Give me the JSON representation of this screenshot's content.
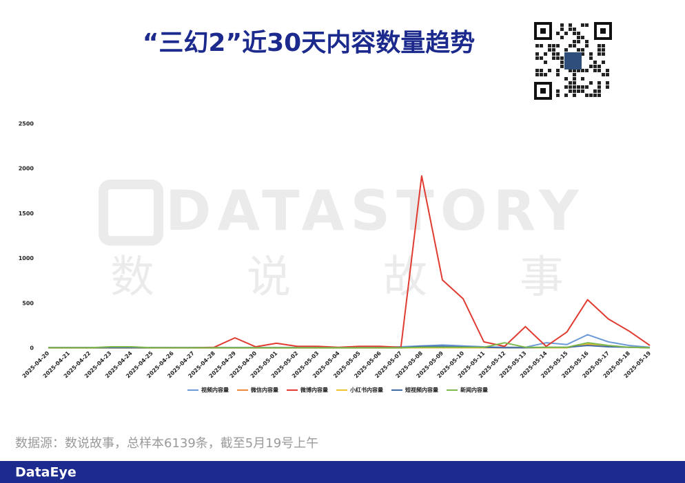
{
  "chart_data": {
    "type": "line",
    "title": "“三幻2”近30天内容数量趋势",
    "categories": [
      "2025-04-20",
      "2025-04-21",
      "2025-04-22",
      "2025-04-23",
      "2025-04-24",
      "2025-04-25",
      "2025-04-26",
      "2025-04-27",
      "2025-04-28",
      "2025-04-29",
      "2025-04-30",
      "2025-05-01",
      "2025-05-02",
      "2025-05-03",
      "2025-05-04",
      "2025-05-05",
      "2025-05-06",
      "2025-05-07",
      "2025-05-08",
      "2025-05-09",
      "2025-05-10",
      "2025-05-11",
      "2025-05-12",
      "2025-05-13",
      "2025-05-14",
      "2025-05-15",
      "2025-05-16",
      "2025-05-17",
      "2025-05-18",
      "2025-05-19"
    ],
    "series": [
      {
        "name": "视频内容量",
        "color": "#6c9ad6",
        "values": [
          8,
          8,
          8,
          8,
          8,
          8,
          8,
          8,
          8,
          8,
          8,
          8,
          8,
          8,
          8,
          10,
          10,
          15,
          25,
          35,
          25,
          15,
          10,
          10,
          60,
          40,
          150,
          70,
          30,
          10
        ]
      },
      {
        "name": "微信内容量",
        "color": "#ec8a3b",
        "values": [
          3,
          3,
          3,
          3,
          3,
          3,
          3,
          3,
          3,
          3,
          3,
          3,
          3,
          3,
          3,
          3,
          3,
          3,
          5,
          5,
          5,
          5,
          5,
          5,
          5,
          5,
          40,
          20,
          10,
          5
        ]
      },
      {
        "name": "微博内容量",
        "color": "#e13a30",
        "values": [
          5,
          5,
          5,
          5,
          5,
          5,
          5,
          5,
          10,
          115,
          15,
          55,
          20,
          20,
          10,
          20,
          20,
          10,
          1920,
          760,
          550,
          70,
          20,
          240,
          20,
          180,
          540,
          325,
          190,
          30
        ]
      },
      {
        "name": "小红书内容量",
        "color": "#f3c22f",
        "values": [
          3,
          3,
          3,
          3,
          3,
          3,
          3,
          3,
          3,
          3,
          3,
          3,
          3,
          3,
          3,
          3,
          3,
          3,
          5,
          5,
          5,
          5,
          5,
          5,
          5,
          5,
          50,
          20,
          10,
          3
        ]
      },
      {
        "name": "短视频内容量",
        "color": "#3f6aa6",
        "values": [
          5,
          5,
          5,
          5,
          5,
          5,
          5,
          5,
          5,
          5,
          5,
          5,
          5,
          5,
          5,
          5,
          5,
          5,
          20,
          20,
          15,
          10,
          5,
          5,
          10,
          10,
          30,
          15,
          10,
          5
        ]
      },
      {
        "name": "新闻内容量",
        "color": "#7cb84a",
        "values": [
          5,
          5,
          5,
          15,
          15,
          5,
          5,
          5,
          5,
          5,
          5,
          5,
          5,
          5,
          5,
          5,
          5,
          5,
          10,
          10,
          10,
          10,
          60,
          10,
          10,
          10,
          60,
          30,
          10,
          5
        ]
      }
    ],
    "ylim": [
      0,
      2500
    ],
    "yticks": [
      0,
      500,
      1000,
      1500,
      2000,
      2500
    ],
    "grid": false
  },
  "watermark": {
    "brand": "DATASTORY",
    "chars": [
      "数",
      "说",
      "故",
      "事"
    ]
  },
  "source": "数据源：数说故事，总样本6139条，截至5月19号上午",
  "footer_brand": "DataEye"
}
